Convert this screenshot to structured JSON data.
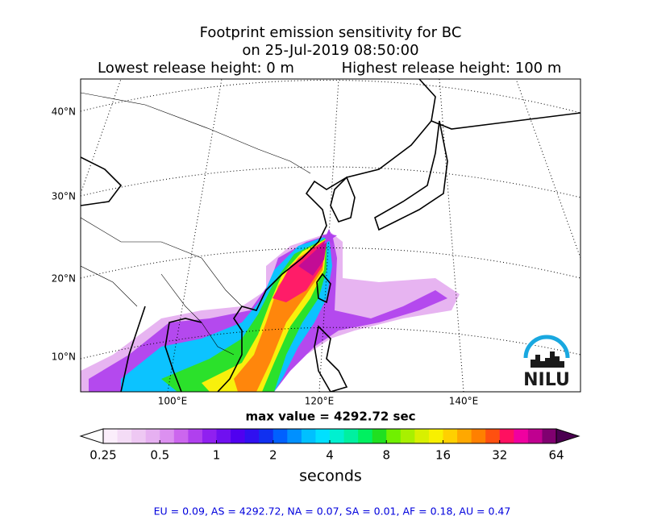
{
  "title_lines": [
    "Footprint emission sensitivity for BC",
    "on 25-Jul-2019 08:50:00"
  ],
  "release": {
    "lowest": "Lowest release height: 0 m",
    "highest": "Highest release height: 100 m"
  },
  "map": {
    "lat_labels": [
      "40°N",
      "30°N",
      "20°N",
      "10°N"
    ],
    "lon_labels": [
      "100°E",
      "120°E",
      "140°E"
    ],
    "logo": "NILU"
  },
  "max_value": "max value = 4292.72 sec",
  "colorbar": {
    "scale": "log",
    "lim": [
      0.25,
      64
    ],
    "ticks": [
      0.25,
      0.5,
      1,
      2,
      4,
      8,
      16,
      32,
      64
    ],
    "label": "seconds",
    "colors": [
      "#fbeefb",
      "#f4dcf6",
      "#eec8f3",
      "#e6b0f1",
      "#dc90f0",
      "#cc66ee",
      "#b040ee",
      "#9020f0",
      "#7010f0",
      "#5000f0",
      "#3010f0",
      "#1030f0",
      "#0060ff",
      "#0090ff",
      "#00c0ff",
      "#00e0ff",
      "#00f0d0",
      "#00f0a0",
      "#00f060",
      "#20e020",
      "#70f000",
      "#a8f000",
      "#d8f000",
      "#f8f000",
      "#ffd000",
      "#ffa800",
      "#ff8000",
      "#ff5010",
      "#ff1060",
      "#f000a0",
      "#c00090",
      "#800070"
    ],
    "extend_low": "#ffffff",
    "extend_high": "#4a0050"
  },
  "footer": "EU = 0.09,  AS = 4292.72,  NA = 0.07,  SA = 0.01,  AF = 0.18,  AU = 0.47"
}
